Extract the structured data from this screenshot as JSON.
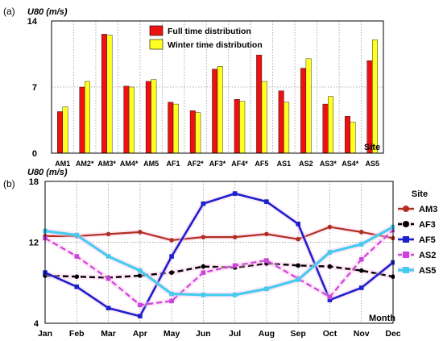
{
  "chart_data": [
    {
      "type": "bar",
      "panel_label": "(a)",
      "ylabel": "U80 (m/s)",
      "xlabel": "Site",
      "ylim": [
        0,
        14
      ],
      "yticks": [
        0,
        7,
        14
      ],
      "grid": true,
      "legend_position": "top-center",
      "categories": [
        "AM1",
        "AM2*",
        "AM3*",
        "AM4*",
        "AM5",
        "AF1",
        "AF2*",
        "AF3*",
        "AF4*",
        "AF5",
        "AS1",
        "AS2",
        "AS3*",
        "AS4*",
        "AS5"
      ],
      "series": [
        {
          "name": "Full time distribution",
          "color": "#ee1111",
          "values": [
            4.4,
            7.0,
            12.6,
            7.1,
            7.6,
            5.4,
            4.5,
            8.9,
            5.7,
            10.4,
            6.6,
            9.0,
            5.2,
            3.9,
            9.8
          ]
        },
        {
          "name": "Winter time distribution",
          "color": "#ffff22",
          "values": [
            4.9,
            7.6,
            12.5,
            7.0,
            7.8,
            5.2,
            4.3,
            9.2,
            5.5,
            7.6,
            5.4,
            10.0,
            6.0,
            3.3,
            12.0
          ]
        }
      ]
    },
    {
      "type": "line",
      "panel_label": "(b)",
      "ylabel": "U80 (m/s)",
      "xlabel": "Month",
      "ylim": [
        4,
        18
      ],
      "yticks": [
        4,
        12,
        18
      ],
      "grid": true,
      "legend_title": "Site",
      "legend_position": "right",
      "categories": [
        "Jan",
        "Feb",
        "Mar",
        "Apr",
        "May",
        "Jun",
        "Jul",
        "Aug",
        "Sep",
        "Oct",
        "Nov",
        "Dec"
      ],
      "series": [
        {
          "name": "AM3",
          "color": "#b03020",
          "values": [
            12.6,
            12.6,
            12.8,
            13.0,
            12.2,
            12.5,
            12.5,
            12.8,
            12.3,
            13.5,
            13.0,
            12.4
          ]
        },
        {
          "name": "AF3",
          "color": "#000000",
          "values": [
            8.7,
            8.6,
            8.5,
            8.7,
            9.0,
            9.6,
            9.5,
            9.9,
            9.7,
            9.6,
            9.2,
            8.6
          ]
        },
        {
          "name": "AF5",
          "color": "#1a22cc",
          "values": [
            9.0,
            7.6,
            5.5,
            4.7,
            10.6,
            15.8,
            16.8,
            16.0,
            13.8,
            6.3,
            7.5,
            10.0
          ]
        },
        {
          "name": "AS2",
          "color": "#cc44dd",
          "values": [
            12.4,
            10.6,
            8.4,
            5.8,
            6.2,
            9.0,
            9.7,
            10.2,
            8.4,
            6.6,
            10.3,
            13.2
          ]
        },
        {
          "name": "AS5",
          "color": "#44ccee",
          "values": [
            13.1,
            12.7,
            10.6,
            9.2,
            6.9,
            6.8,
            6.8,
            7.4,
            8.3,
            11.0,
            11.8,
            13.5
          ]
        }
      ]
    }
  ]
}
